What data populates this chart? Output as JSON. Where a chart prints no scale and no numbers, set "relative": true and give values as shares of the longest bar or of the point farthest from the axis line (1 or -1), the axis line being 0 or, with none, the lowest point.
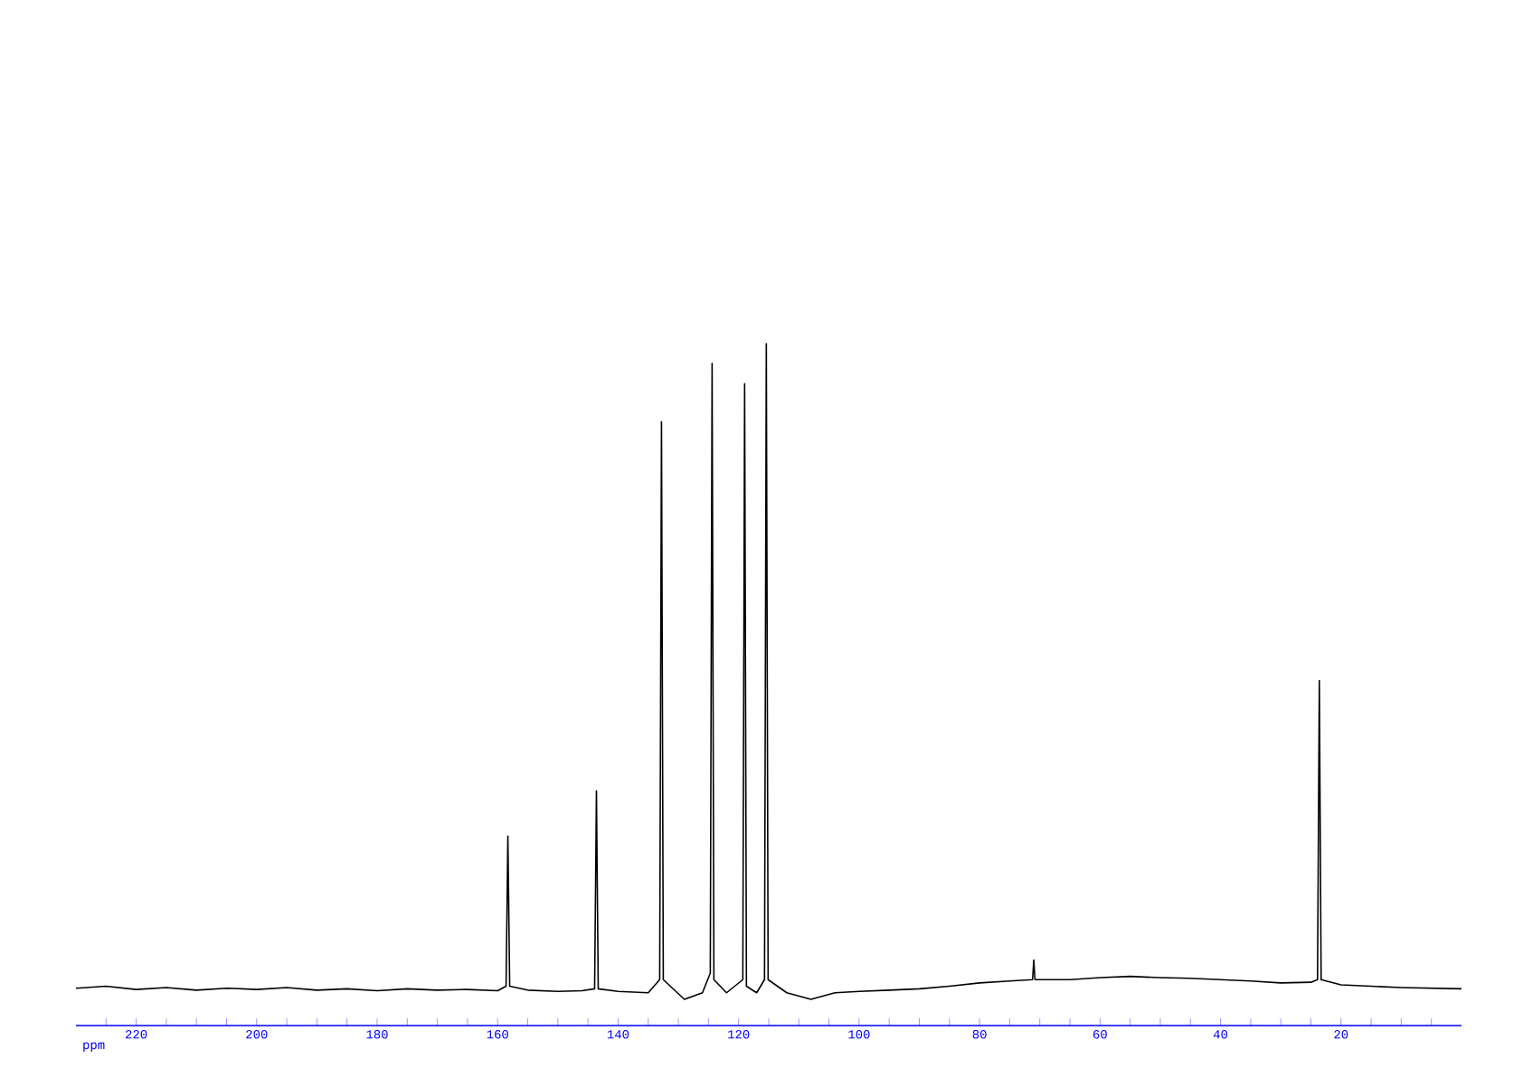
{
  "chart_data": {
    "type": "line",
    "xlabel": "ppm",
    "relative": true,
    "xlim": [
      230,
      0
    ],
    "xticks": [
      {
        "value": 225,
        "label": null
      },
      220,
      {
        "value": 215,
        "label": null
      },
      {
        "value": 210,
        "label": null
      },
      {
        "value": 205,
        "label": null
      },
      200,
      {
        "value": 195,
        "label": null
      },
      {
        "value": 190,
        "label": null
      },
      {
        "value": 185,
        "label": null
      },
      180,
      {
        "value": 175,
        "label": null
      },
      {
        "value": 170,
        "label": null
      },
      {
        "value": 165,
        "label": null
      },
      160,
      {
        "value": 155,
        "label": null
      },
      {
        "value": 150,
        "label": null
      },
      {
        "value": 145,
        "label": null
      },
      140,
      {
        "value": 135,
        "label": null
      },
      {
        "value": 130,
        "label": null
      },
      {
        "value": 125,
        "label": null
      },
      120,
      {
        "value": 115,
        "label": null
      },
      {
        "value": 110,
        "label": null
      },
      {
        "value": 105,
        "label": null
      },
      100,
      {
        "value": 95,
        "label": null
      },
      {
        "value": 90,
        "label": null
      },
      {
        "value": 85,
        "label": null
      },
      80,
      {
        "value": 75,
        "label": null
      },
      {
        "value": 70,
        "label": null
      },
      {
        "value": 65,
        "label": null
      },
      60,
      {
        "value": 55,
        "label": null
      },
      {
        "value": 50,
        "label": null
      },
      {
        "value": 45,
        "label": null
      },
      40,
      {
        "value": 35,
        "label": null
      },
      {
        "value": 30,
        "label": null
      },
      {
        "value": 25,
        "label": null
      },
      20,
      {
        "value": 15,
        "label": null
      },
      {
        "value": 10,
        "label": null
      },
      {
        "value": 5,
        "label": null
      }
    ],
    "marker": "none",
    "line_style": "solid",
    "series": [
      {
        "color": "#000000",
        "x": [
          230,
          225,
          220,
          215,
          210,
          205,
          200,
          195,
          190,
          185,
          180,
          175,
          170,
          165,
          160,
          158.6,
          158.3,
          158.0,
          155,
          150,
          146,
          143.9,
          143.6,
          143.3,
          140,
          135,
          133.1,
          132.8,
          132.5,
          129,
          126,
          124.7,
          124.4,
          124.1,
          122,
          119.3,
          119.0,
          118.7,
          117,
          115.7,
          115.4,
          115.1,
          112,
          108,
          104,
          100,
          95,
          90,
          85,
          80,
          75,
          71.2,
          71.0,
          70.8,
          65,
          60,
          55,
          50,
          45,
          40,
          35,
          30,
          25,
          23.9,
          23.6,
          23.3,
          20,
          15,
          10,
          5,
          0
        ],
        "values": [
          0.017,
          0.02,
          0.015,
          0.018,
          0.014,
          0.017,
          0.015,
          0.018,
          0.014,
          0.016,
          0.013,
          0.016,
          0.014,
          0.015,
          0.013,
          0.02,
          0.249,
          0.02,
          0.014,
          0.012,
          0.013,
          0.016,
          0.318,
          0.016,
          0.012,
          0.01,
          0.03,
          0.881,
          0.03,
          0,
          0.01,
          0.04,
          0.97,
          0.03,
          0.01,
          0.03,
          0.939,
          0.02,
          0.01,
          0.03,
          1.0,
          0.03,
          0.01,
          0,
          0.01,
          0.012,
          0.014,
          0.016,
          0.02,
          0.025,
          0.028,
          0.03,
          0.06,
          0.03,
          0.03,
          0.033,
          0.035,
          0.033,
          0.032,
          0.03,
          0.028,
          0.025,
          0.026,
          0.03,
          0.486,
          0.03,
          0.022,
          0.02,
          0.018,
          0.017,
          0.016
        ]
      }
    ]
  }
}
